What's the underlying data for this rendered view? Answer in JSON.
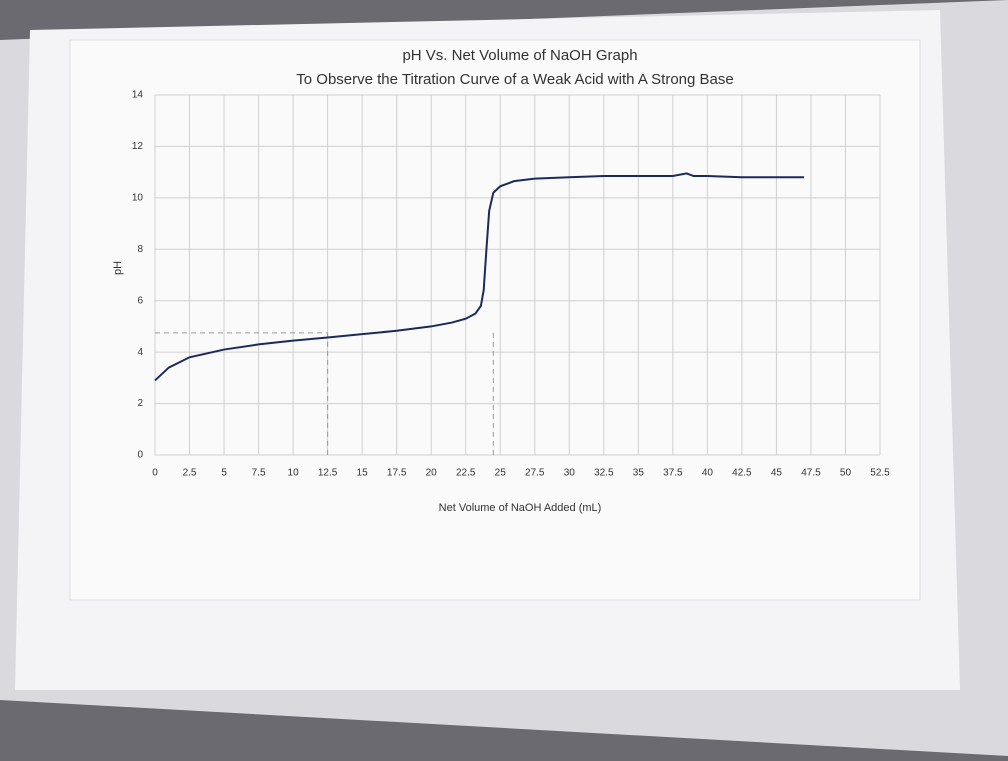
{
  "chart_data": {
    "type": "line",
    "title": "pH Vs. Net Volume of NaOH Graph",
    "subtitle": "To Observe the Titration Curve of a Weak Acid with A Strong Base",
    "x_label": "Net Volume of NaOH Added (mL)",
    "y_label": "pH",
    "x": [
      0,
      1,
      2.5,
      5,
      7.5,
      10,
      12.5,
      15,
      17.5,
      20,
      21.5,
      22.5,
      23.2,
      23.6,
      23.8,
      24.0,
      24.2,
      24.5,
      25,
      26,
      27.5,
      30,
      32.5,
      35,
      37.5,
      38.5,
      39,
      40,
      42.5,
      45,
      47
    ],
    "series": [
      {
        "name": "pH",
        "color": "#1a2a5e",
        "values": [
          2.9,
          3.4,
          3.8,
          4.1,
          4.3,
          4.45,
          4.57,
          4.7,
          4.83,
          5.0,
          5.15,
          5.3,
          5.5,
          5.8,
          6.4,
          8.0,
          9.5,
          10.2,
          10.45,
          10.65,
          10.75,
          10.8,
          10.85,
          10.85,
          10.85,
          10.95,
          10.85,
          10.85,
          10.8,
          10.8,
          10.8
        ]
      }
    ],
    "xlim": [
      0,
      52.5
    ],
    "xticks": [
      0,
      2.5,
      5,
      7.5,
      10,
      12.5,
      15,
      17.5,
      20,
      22.5,
      25,
      27.5,
      30,
      32.5,
      35,
      37.5,
      40,
      42.5,
      45,
      47.5,
      50,
      52.5
    ],
    "ylim": [
      0,
      14
    ],
    "yticks": [
      0,
      2,
      4,
      6,
      8,
      10,
      12,
      14
    ],
    "reference_lines": {
      "x": [
        12.5,
        24.5
      ],
      "y": 4.75
    },
    "grid": true
  }
}
